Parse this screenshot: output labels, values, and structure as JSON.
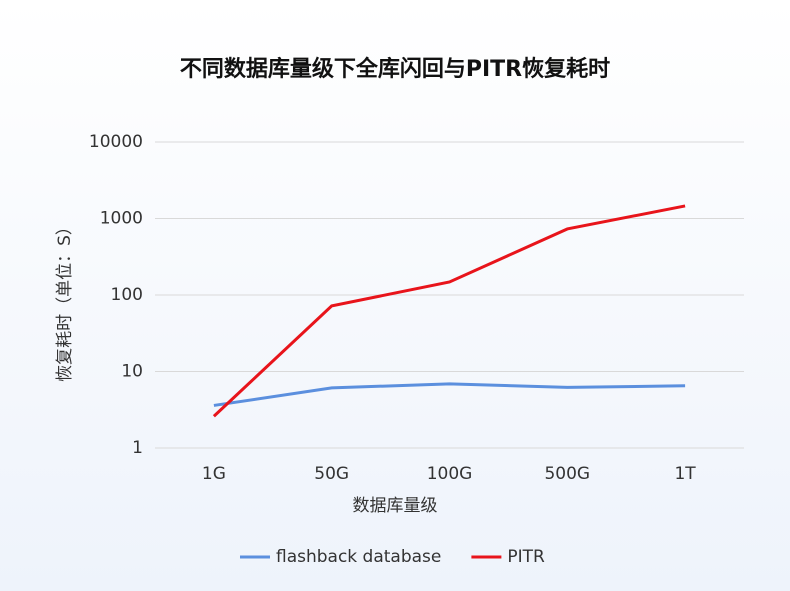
{
  "chart_data": {
    "type": "line",
    "title": "不同数据库量级下全库闪回与PITR恢复耗时",
    "x_label": "数据库量级",
    "y_label": "恢复耗时（单位：S）",
    "categories": [
      "1G",
      "50G",
      "100G",
      "500G",
      "1T"
    ],
    "series": [
      {
        "name": "flashback database",
        "color": "#5b8fde",
        "values": [
          3.6,
          6.1,
          6.9,
          6.2,
          6.5
        ]
      },
      {
        "name": "PITR",
        "color": "#e8141b",
        "values": [
          2.6,
          72,
          148,
          730,
          1460
        ]
      }
    ],
    "ylim": [
      1,
      10000
    ],
    "yticks": [
      1,
      10,
      100,
      1000,
      10000
    ],
    "log_scale": true,
    "grid": true,
    "legend": "bottom"
  }
}
